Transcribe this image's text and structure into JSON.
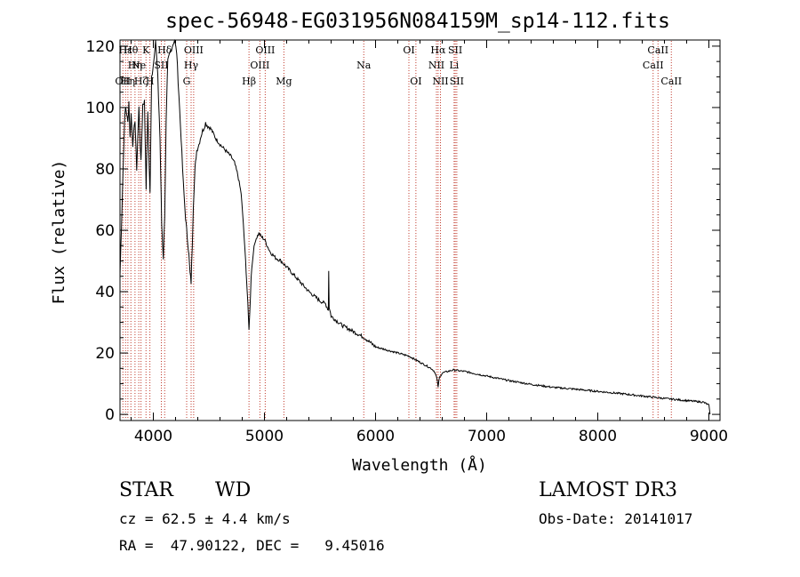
{
  "chart_data": {
    "type": "line",
    "title": "spec-56948-EG031956N084159M_sp14-112.fits",
    "xlabel": "Wavelength (Å)",
    "ylabel": "Flux (relative)",
    "xlim": [
      3700,
      9100
    ],
    "ylim": [
      -2,
      122
    ],
    "xticks": [
      4000,
      5000,
      6000,
      7000,
      8000,
      9000
    ],
    "yticks": [
      0,
      20,
      40,
      60,
      80,
      100,
      120
    ],
    "series": [
      {
        "name": "spectrum",
        "x": [
          3700,
          3720,
          3740,
          3750,
          3760,
          3770,
          3780,
          3790,
          3800,
          3815,
          3835,
          3850,
          3870,
          3889,
          3905,
          3920,
          3935,
          3950,
          3970,
          3985,
          4000,
          4020,
          4040,
          4060,
          4075,
          4090,
          4102,
          4115,
          4130,
          4150,
          4170,
          4190,
          4210,
          4230,
          4250,
          4270,
          4290,
          4305,
          4320,
          4330,
          4340,
          4350,
          4360,
          4375,
          4390,
          4410,
          4430,
          4450,
          4470,
          4490,
          4520,
          4560,
          4600,
          4650,
          4700,
          4730,
          4760,
          4790,
          4810,
          4830,
          4845,
          4855,
          4861,
          4868,
          4880,
          4900,
          4920,
          4950,
          4970,
          5000,
          5050,
          5100,
          5150,
          5200,
          5300,
          5400,
          5500,
          5550,
          5575,
          5578,
          5582,
          5600,
          5700,
          5800,
          5900,
          6000,
          6100,
          6200,
          6300,
          6400,
          6450,
          6500,
          6530,
          6550,
          6563,
          6575,
          6600,
          6650,
          6700,
          6750,
          6800,
          7000,
          7200,
          7400,
          7600,
          7800,
          8000,
          8200,
          8400,
          8600,
          8800,
          8950,
          9000,
          9010
        ],
        "y": [
          45,
          70,
          95,
          100,
          98,
          95,
          102,
          90,
          98,
          88,
          96,
          80,
          100,
          82,
          101,
          102,
          74,
          98,
          72,
          110,
          114,
          122,
          110,
          90,
          62,
          51,
          65,
          95,
          115,
          118,
          120,
          122,
          118,
          104,
          90,
          75,
          64,
          58,
          52,
          46,
          43,
          55,
          68,
          80,
          86,
          88,
          91,
          93,
          95,
          94,
          93,
          90,
          88,
          86,
          84,
          82,
          78,
          72,
          62,
          50,
          40,
          32,
          28,
          33,
          45,
          53,
          57,
          59,
          58,
          57,
          53,
          51,
          50,
          48,
          44,
          40,
          37,
          36,
          34,
          47,
          35,
          32,
          29,
          27,
          25,
          22,
          21,
          20,
          19,
          17,
          16,
          15,
          14,
          12,
          9,
          12,
          13.5,
          14,
          14.5,
          14.2,
          14.0,
          12.5,
          11.0,
          9.8,
          8.8,
          8.2,
          7.5,
          6.8,
          6.0,
          5.2,
          4.5,
          4.0,
          3.0,
          0
        ]
      }
    ],
    "lines": [
      {
        "wave": 3726,
        "label": "OII",
        "row": 2
      },
      {
        "wave": 3750,
        "label": "Hε",
        "row": 0
      },
      {
        "wave": 3771,
        "label": "Hη",
        "row": 2
      },
      {
        "wave": 3798,
        "label": "Hθ",
        "row": 0
      },
      {
        "wave": 3835,
        "label": "Hη",
        "row": 1
      },
      {
        "wave": 3869,
        "label": "Ne",
        "row": 1
      },
      {
        "wave": 3889,
        "label": "Hζ",
        "row": 2
      },
      {
        "wave": 3934,
        "label": "K",
        "row": 0
      },
      {
        "wave": 3969,
        "label": "H",
        "row": 2
      },
      {
        "wave": 4072,
        "label": "SII",
        "row": 1
      },
      {
        "wave": 4102,
        "label": "Hδ",
        "row": 0
      },
      {
        "wave": 4300,
        "label": "G",
        "row": 2
      },
      {
        "wave": 4340,
        "label": "Hγ",
        "row": 1
      },
      {
        "wave": 4363,
        "label": "OIII",
        "row": 0
      },
      {
        "wave": 4861,
        "label": "Hβ",
        "row": 2
      },
      {
        "wave": 4959,
        "label": "OIII",
        "row": 1
      },
      {
        "wave": 5007,
        "label": "OIII",
        "row": 0
      },
      {
        "wave": 5175,
        "label": "Mg",
        "row": 2
      },
      {
        "wave": 5894,
        "label": "Na",
        "row": 1
      },
      {
        "wave": 6300,
        "label": "OI",
        "row": 0
      },
      {
        "wave": 6363,
        "label": "OI",
        "row": 2
      },
      {
        "wave": 6548,
        "label": "NII",
        "row": 1
      },
      {
        "wave": 6563,
        "label": "Hα",
        "row": 0
      },
      {
        "wave": 6584,
        "label": "NII",
        "row": 2
      },
      {
        "wave": 6707,
        "label": "Li",
        "row": 1
      },
      {
        "wave": 6717,
        "label": "SII",
        "row": 0
      },
      {
        "wave": 6731,
        "label": "SII",
        "row": 2
      },
      {
        "wave": 8498,
        "label": "CaII",
        "row": 1
      },
      {
        "wave": 8542,
        "label": "CaII",
        "row": 0
      },
      {
        "wave": 8662,
        "label": "CaII",
        "row": 2
      }
    ]
  },
  "info": {
    "class": "STAR",
    "subclass": "WD",
    "survey": "LAMOST DR3",
    "cz": "cz = 62.5 ± 4.4 km/s",
    "obs_date": "Obs-Date: 20141017",
    "radec": "RA =  47.90122, DEC =   9.45016"
  },
  "colors": {
    "line_marker": "#c0392b",
    "spectrum": "#000000"
  }
}
